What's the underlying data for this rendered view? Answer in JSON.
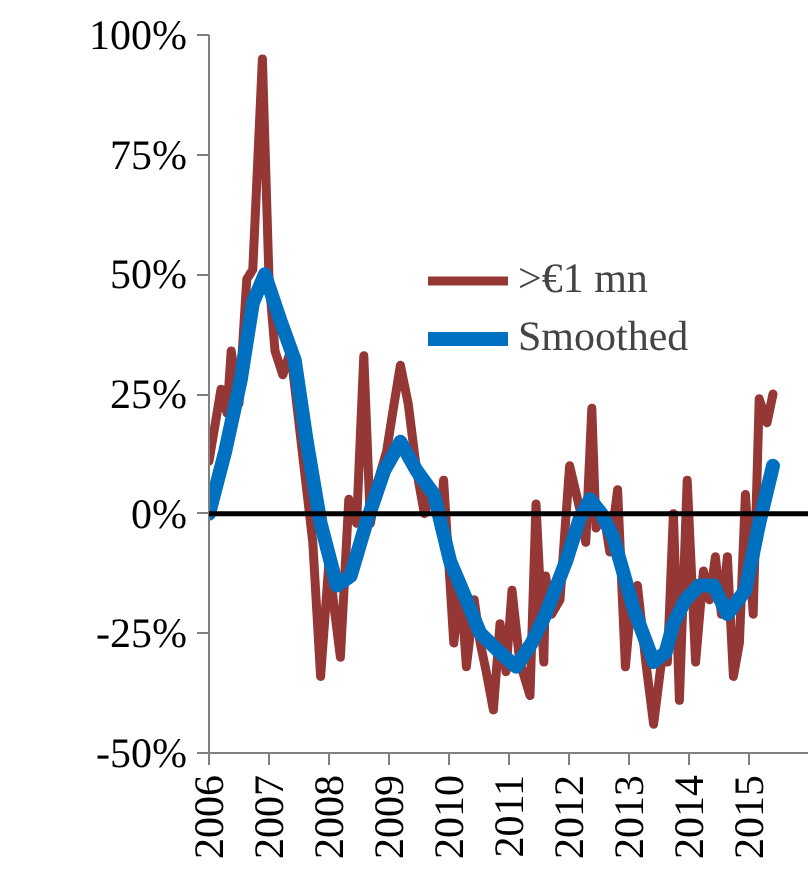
{
  "chart_data": {
    "type": "line",
    "ylim": [
      -50,
      100
    ],
    "yticks": [
      {
        "value": -50,
        "label": "-50%"
      },
      {
        "value": -25,
        "label": "-25%"
      },
      {
        "value": 0,
        "label": "0%"
      },
      {
        "value": 25,
        "label": "25%"
      },
      {
        "value": 50,
        "label": "50%"
      },
      {
        "value": 75,
        "label": "75%"
      },
      {
        "value": 100,
        "label": "100%"
      }
    ],
    "xlim": [
      2006,
      2016
    ],
    "xticks": [
      2006,
      2007,
      2008,
      2009,
      2010,
      2011,
      2012,
      2013,
      2014,
      2015
    ],
    "grid": false,
    "legend": "top right",
    "line_style": "solid",
    "ref_lines": [
      {
        "axis": "y",
        "value": 0,
        "color": "#000000"
      }
    ],
    "series": [
      {
        "name": ">€1 mn",
        "color": "#953735",
        "x": [
          2006.0,
          2006.2,
          2006.3,
          2006.37,
          2006.5,
          2006.63,
          2006.73,
          2006.89,
          2007.0,
          2007.1,
          2007.23,
          2007.36,
          2007.73,
          2007.86,
          2008.0,
          2008.09,
          2008.19,
          2008.33,
          2008.46,
          2008.58,
          2008.69,
          2008.82,
          2008.96,
          2009.06,
          2009.19,
          2009.32,
          2009.46,
          2009.59,
          2009.72,
          2009.85,
          2009.91,
          2010.08,
          2010.19,
          2010.29,
          2010.42,
          2010.52,
          2010.62,
          2010.74,
          2010.85,
          2010.95,
          2011.05,
          2011.18,
          2011.35,
          2011.45,
          2011.58,
          2011.61,
          2011.71,
          2011.85,
          2012.01,
          2012.18,
          2012.28,
          2012.38,
          2012.45,
          2012.58,
          2012.68,
          2012.81,
          2012.94,
          2013.04,
          2013.14,
          2013.28,
          2013.41,
          2013.54,
          2013.64,
          2013.74,
          2013.84,
          2013.97,
          2014.11,
          2014.24,
          2014.34,
          2014.44,
          2014.54,
          2014.64,
          2014.74,
          2014.84,
          2014.94,
          2015.07,
          2015.17,
          2015.3,
          2015.4
        ],
        "values": [
          11,
          26,
          21,
          34,
          23,
          49,
          51,
          95,
          49,
          34,
          29,
          34,
          -6,
          -34,
          -10,
          -20,
          -30,
          3,
          -2,
          33,
          -2,
          7,
          13,
          21,
          31,
          23,
          9,
          0,
          5,
          -3,
          7,
          -27,
          -14,
          -32,
          -18,
          -27,
          -33,
          -41,
          -23,
          -33,
          -16,
          -31,
          -38,
          2,
          -31,
          -13,
          -21,
          -18,
          10,
          1,
          -6,
          22,
          -3,
          0,
          -8,
          5,
          -32,
          -18,
          -15,
          -31,
          -44,
          -31,
          -31,
          0,
          -39,
          7,
          -31,
          -12,
          -18,
          -9,
          -21,
          -9,
          -34,
          -27,
          4,
          -21,
          24,
          19,
          25
        ]
      },
      {
        "name": "Smoothed",
        "color": "#0070c0",
        "x": [
          2006.0,
          2006.27,
          2006.53,
          2006.73,
          2006.93,
          2007.2,
          2007.43,
          2007.63,
          2007.86,
          2008.13,
          2008.36,
          2008.62,
          2008.92,
          2009.19,
          2009.46,
          2009.75,
          2010.02,
          2010.29,
          2010.52,
          2010.85,
          2011.12,
          2011.38,
          2011.61,
          2011.95,
          2012.18,
          2012.35,
          2012.54,
          2012.74,
          2013.08,
          2013.41,
          2013.61,
          2013.74,
          2013.94,
          2014.17,
          2014.41,
          2014.64,
          2014.94,
          2015.17,
          2015.4
        ],
        "values": [
          0,
          13,
          28,
          44,
          50,
          40,
          32,
          15,
          -2,
          -15,
          -13,
          -2,
          9,
          15,
          9,
          4,
          -10,
          -18,
          -25,
          -29,
          -32,
          -27,
          -21,
          -10,
          -1,
          3,
          0,
          -5,
          -20,
          -31,
          -29,
          -23,
          -18,
          -15,
          -15,
          -21,
          -16,
          -2,
          10
        ]
      }
    ]
  }
}
